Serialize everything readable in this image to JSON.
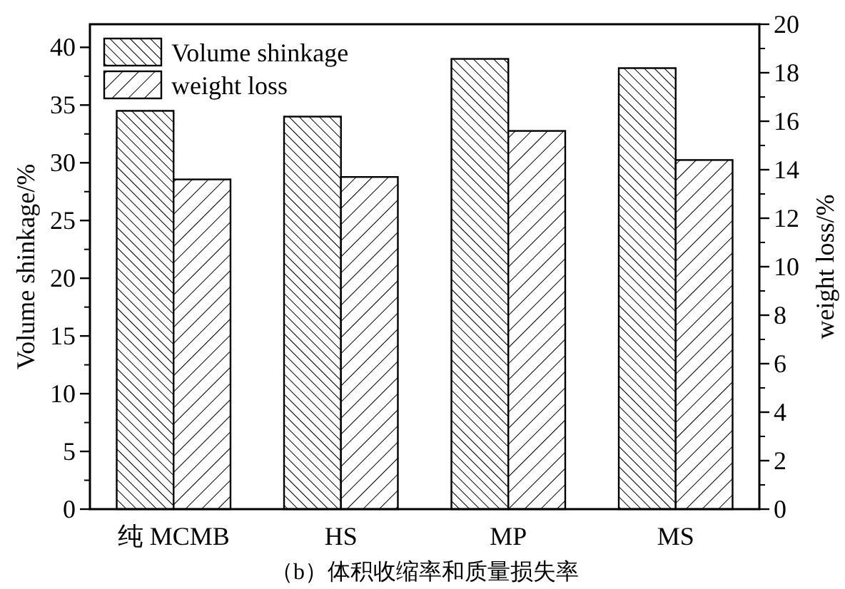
{
  "chart_data": {
    "type": "bar",
    "title": "（b）体积收缩率和质量损失率",
    "ylabel": "Volume shinkage/%",
    "y2label": "weight loss/%",
    "categories": [
      "纯 MCMB",
      "HS",
      "MP",
      "MS"
    ],
    "series": [
      {
        "name": "Volume shinkage",
        "color": "#000000",
        "values": [
          34.5,
          34,
          39,
          38.2
        ]
      },
      {
        "name": "weight loss",
        "color": "#000000",
        "axis": "y2",
        "values": [
          13.6,
          13.7,
          15.6,
          14.4
        ]
      }
    ],
    "ylim": [
      0,
      42
    ],
    "yticks": [
      0,
      5,
      10,
      15,
      20,
      25,
      30,
      35,
      40
    ],
    "y2lim": [
      0,
      20
    ],
    "y2ticks": [
      0,
      2,
      4,
      6,
      8,
      10,
      12,
      14,
      16,
      18,
      20
    ],
    "legend": "top left",
    "grid": false
  }
}
